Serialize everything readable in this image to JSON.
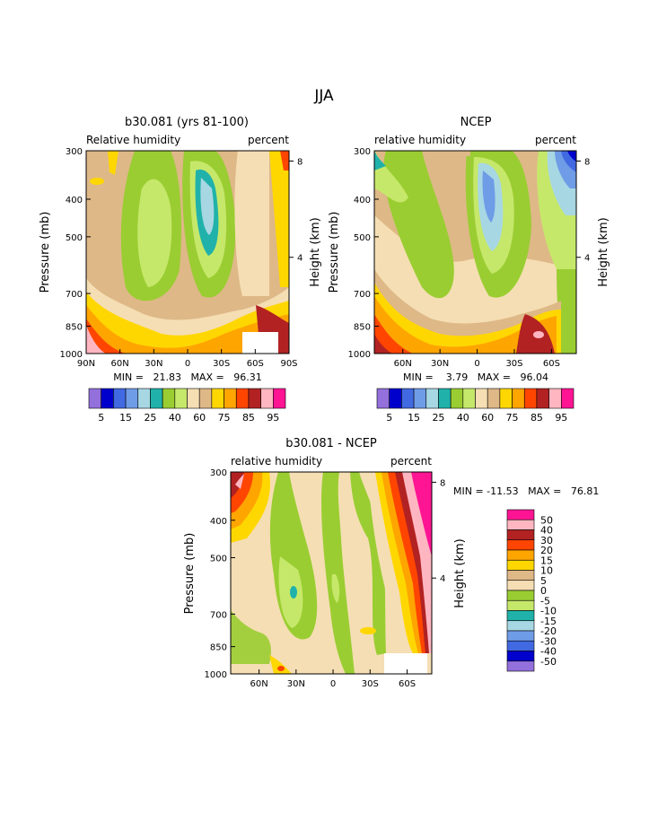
{
  "page_title": "JJA",
  "panels": [
    {
      "title": "b30.081 (yrs 81-100)",
      "left_label": "Relative humidity",
      "right_label": "percent",
      "ylabel": "Pressure (mb)",
      "y2label": "Height (km)",
      "stats": "MIN =   21.83   MAX =   96.31"
    },
    {
      "title": "NCEP",
      "left_label": "relative humidity",
      "right_label": "percent",
      "ylabel": "Pressure (mb)",
      "y2label": "Height (km)",
      "stats": "MIN =    3.79   MAX =   96.04"
    },
    {
      "title": "b30.081 - NCEP",
      "left_label": "relative humidity",
      "right_label": "percent",
      "ylabel": "Pressure (mb)",
      "y2label": "Height (km)",
      "stats": "MIN = -11.53   MAX =   76.81"
    }
  ],
  "rh_levels_colorbar": {
    "colors": [
      "#9370db",
      "#0000cd",
      "#4169e1",
      "#6f9ce6",
      "#a7d7e3",
      "#20b2aa",
      "#9acd32",
      "#c6e86a",
      "#f5deb3",
      "#deb887",
      "#ffd700",
      "#ffa500",
      "#ff4500",
      "#b22222",
      "#ffb6c1",
      "#ff1493"
    ],
    "labels": [
      "5",
      "15",
      "25",
      "40",
      "60",
      "75",
      "85",
      "95"
    ]
  },
  "diff_levels_colorbar": {
    "colors": [
      "#ff1493",
      "#ffb6c1",
      "#b22222",
      "#ff4500",
      "#ffa500",
      "#ffd700",
      "#deb887",
      "#f5deb3",
      "#9acd32",
      "#c6e86a",
      "#20b2aa",
      "#a7d7e3",
      "#6f9ce6",
      "#4169e1",
      "#0000cd",
      "#9370db"
    ],
    "labels": [
      "50",
      "40",
      "30",
      "20",
      "15",
      "10",
      "5",
      "0",
      "-5",
      "-10",
      "-15",
      "-20",
      "-30",
      "-40",
      "-50"
    ]
  },
  "chart_data": [
    {
      "type": "heatmap",
      "title": "b30.081 (yrs 81-100)",
      "ylabel": "Pressure (mb)",
      "y2label": "Height (km)",
      "x_ticklabels": [
        "90N",
        "60N",
        "30N",
        "0",
        "30S",
        "60S",
        "90S"
      ],
      "y_ticklabels": [
        "300",
        "400",
        "500",
        "700",
        "850",
        "1000"
      ],
      "y2_ticklabels": [
        "8",
        "4"
      ],
      "min": 21.83,
      "max": 96.31
    },
    {
      "type": "heatmap",
      "title": "NCEP",
      "ylabel": "Pressure (mb)",
      "y2label": "Height (km)",
      "x_ticklabels": [
        "60N",
        "30N",
        "0",
        "30S",
        "60S"
      ],
      "y_ticklabels": [
        "300",
        "400",
        "500",
        "700",
        "850",
        "1000"
      ],
      "y2_ticklabels": [
        "8",
        "4"
      ],
      "min": 3.79,
      "max": 96.04
    },
    {
      "type": "heatmap",
      "title": "b30.081 - NCEP",
      "ylabel": "Pressure (mb)",
      "y2label": "Height (km)",
      "x_ticklabels": [
        "60N",
        "30N",
        "0",
        "30S",
        "60S"
      ],
      "y_ticklabels": [
        "300",
        "400",
        "500",
        "700",
        "850",
        "1000"
      ],
      "y2_ticklabels": [
        "8",
        "4"
      ],
      "min": -11.53,
      "max": 76.81
    }
  ]
}
